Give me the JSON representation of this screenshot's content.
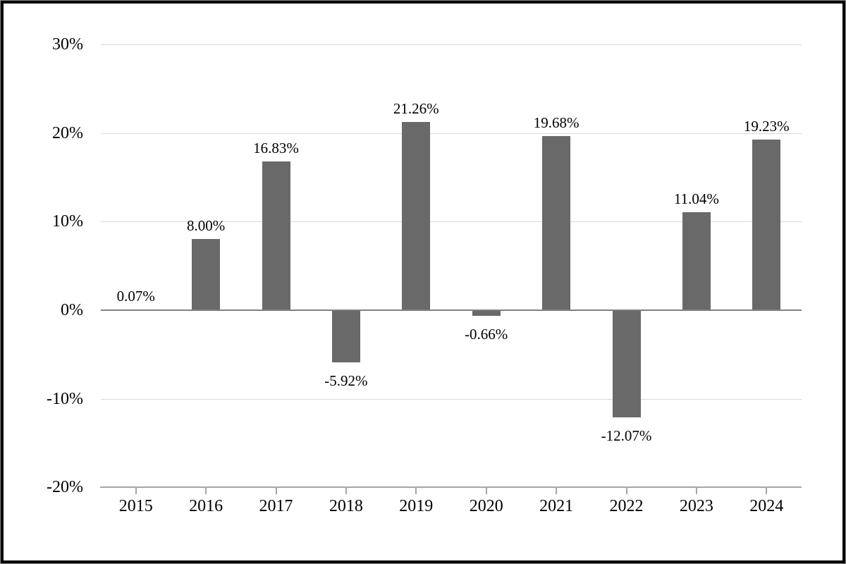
{
  "chart_data": {
    "type": "bar",
    "categories": [
      "2015",
      "2016",
      "2017",
      "2018",
      "2019",
      "2020",
      "2021",
      "2022",
      "2023",
      "2024"
    ],
    "values": [
      0.07,
      8.0,
      16.83,
      -5.92,
      21.26,
      -0.66,
      19.68,
      -12.07,
      11.04,
      19.23
    ],
    "data_labels": [
      "0.07%",
      "8.00%",
      "16.83%",
      "-5.92%",
      "21.26%",
      "-0.66%",
      "19.68%",
      "-12.07%",
      "11.04%",
      "19.23%"
    ],
    "title": "",
    "xlabel": "",
    "ylabel": "",
    "y_axis": {
      "ylim": [
        -20,
        30
      ],
      "ticks": [
        30,
        20,
        10,
        0,
        -10,
        -20
      ],
      "tick_labels": [
        "30%",
        "20%",
        "10%",
        "0%",
        "-10%",
        "-20%"
      ]
    },
    "x_axis": {
      "tick_mark_position": "category-centers"
    },
    "grid": true,
    "legend": false,
    "colors": {
      "bar": "#696969",
      "gridline": "#d9d9d9",
      "zero_line": "#808080",
      "axis_line": "#a6a6a6",
      "text": "#000000",
      "frame_border": "#000000",
      "background": "#ffffff"
    }
  }
}
